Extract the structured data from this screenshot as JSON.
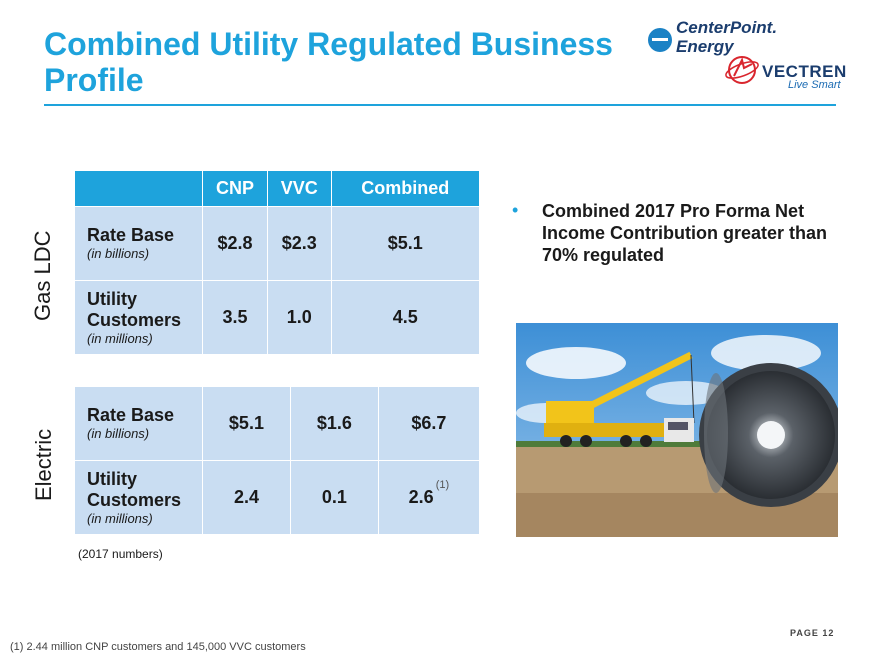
{
  "header": {
    "title": "Combined Utility Regulated Business Profile",
    "accent_color": "#1ea3dc"
  },
  "logos": {
    "centerpoint": {
      "line1": "CenterPoint.",
      "line2": "Energy"
    },
    "vectren": {
      "name": "VECTREN",
      "tagline": "Live Smart"
    }
  },
  "table_header": {
    "col1": "CNP",
    "col2": "VVC",
    "col3": "Combined"
  },
  "gas_ldc": {
    "section_label": "Gas LDC",
    "rows": [
      {
        "label": "Rate Base",
        "sub": "(in billions)",
        "cnp": "$2.8",
        "vvc": "$2.3",
        "combined": "$5.1"
      },
      {
        "label": "Utility Customers",
        "sub": "(in millions)",
        "cnp": "3.5",
        "vvc": "1.0",
        "combined": "4.5"
      }
    ]
  },
  "electric": {
    "section_label": "Electric",
    "rows": [
      {
        "label": "Rate Base",
        "sub": "(in billions)",
        "cnp": "$5.1",
        "vvc": "$1.6",
        "combined": "$6.7"
      },
      {
        "label": "Utility Customers",
        "sub": "(in millions)",
        "cnp": "2.4",
        "vvc": "0.1",
        "combined": "2.6",
        "combined_note": "(1)"
      }
    ]
  },
  "note": "(2017 numbers)",
  "bullet": "Combined 2017 Pro Forma Net Income Contribution greater than 70% regulated",
  "footnote": "(1) 2.44 million CNP customers and 145,000 VVC customers",
  "page_label": "PAGE 12"
}
